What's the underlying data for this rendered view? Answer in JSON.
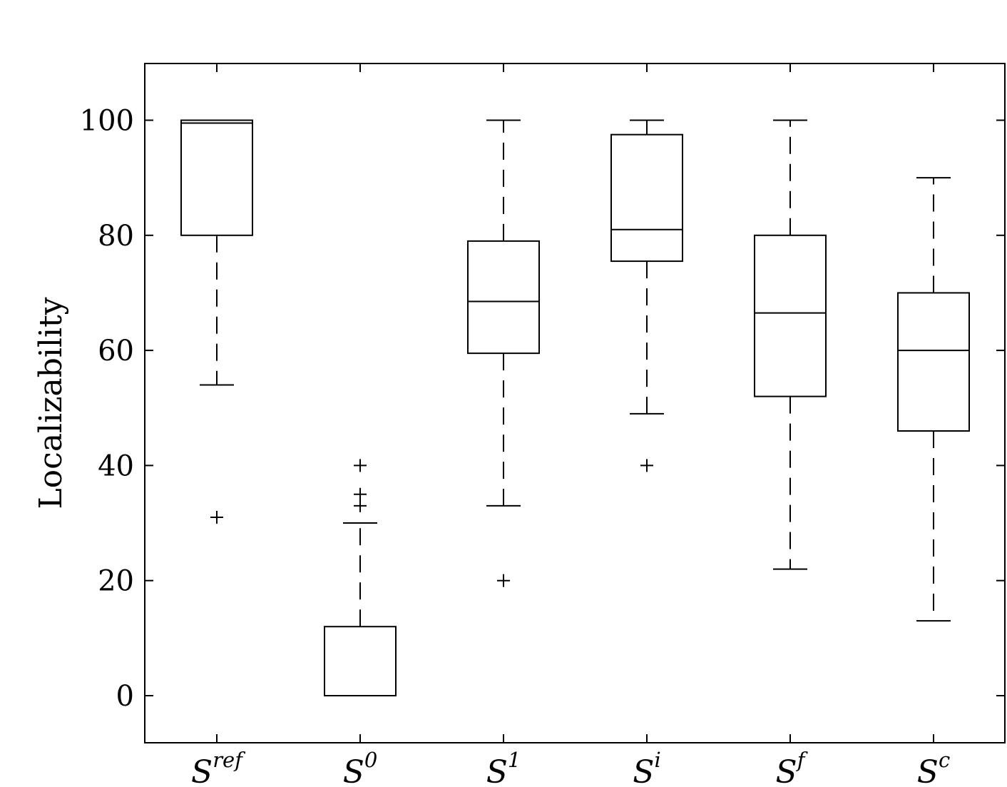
{
  "chart_data": {
    "type": "box",
    "title": "",
    "xlabel": "",
    "ylabel": "Localizability",
    "ylim": [
      -8,
      110
    ],
    "yticks": [
      0,
      20,
      40,
      60,
      80,
      100
    ],
    "grid": false,
    "categories": [
      {
        "base": "S",
        "sup": "ref"
      },
      {
        "base": "S",
        "sup": "0"
      },
      {
        "base": "S",
        "sup": "1"
      },
      {
        "base": "S",
        "sup": "i"
      },
      {
        "base": "S",
        "sup": "f"
      },
      {
        "base": "S",
        "sup": "c"
      }
    ],
    "boxes": [
      {
        "q1": 80,
        "median": 99.5,
        "q3": 100,
        "whisker_low": 54,
        "whisker_high": 100,
        "outliers": [
          31
        ]
      },
      {
        "q1": 0,
        "median": 0,
        "q3": 12,
        "whisker_low": 0,
        "whisker_high": 30,
        "outliers": [
          33,
          35,
          40
        ]
      },
      {
        "q1": 59.5,
        "median": 68.5,
        "q3": 79,
        "whisker_low": 33,
        "whisker_high": 100,
        "outliers": [
          20
        ]
      },
      {
        "q1": 75.5,
        "median": 81,
        "q3": 97.5,
        "whisker_low": 49,
        "whisker_high": 100,
        "outliers": [
          40
        ]
      },
      {
        "q1": 52,
        "median": 66.5,
        "q3": 80,
        "whisker_low": 22,
        "whisker_high": 100,
        "outliers": []
      },
      {
        "q1": 46,
        "median": 60,
        "q3": 70,
        "whisker_low": 13,
        "whisker_high": 90,
        "outliers": []
      }
    ]
  }
}
